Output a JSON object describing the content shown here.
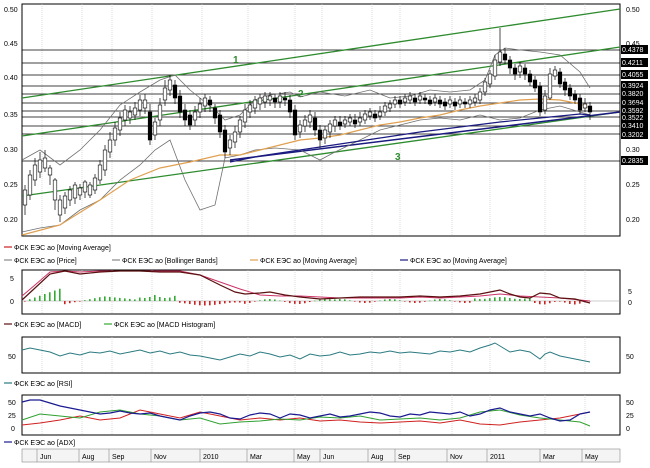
{
  "colors": {
    "price_up": "#ffffff",
    "price_down": "#000000",
    "ma_short": "#e0a050",
    "ma_long": "#1a1a80",
    "bollinger": "#707070",
    "channel": "#2e8b2e",
    "macd_line": "#5a1010",
    "macd_signal": "#cc3366",
    "hist_up": "#33aa33",
    "hist_down": "#cc2222",
    "rsi": "#2a7a80",
    "adx": "#1a1a90",
    "di_plus": "#30a030",
    "di_minus": "#d02020"
  },
  "price_panel": {
    "y_ticks": [
      "0.50",
      "0.45",
      "0.40",
      "0.35",
      "0.30",
      "0.25",
      "0.20"
    ],
    "right_ticks": [
      "0.50",
      "0.45",
      "0.40",
      "0.35",
      "0.30",
      "0.25",
      "0.20"
    ],
    "levels": [
      "0.4378",
      "0.4211",
      "0.4055",
      "0.3924",
      "0.3820",
      "0.3694",
      "0.3592",
      "0.3522",
      "0.3410",
      "0.3202",
      "0.2835"
    ],
    "channel_labels": [
      "1",
      "2",
      "3"
    ],
    "legend": [
      "ФСК ЕЭС ао [Moving Average]",
      "ФСК ЕЭС ао [Price]",
      "ФСК ЕЭС ао [Bollinger Bands]",
      "ФСК ЕЭС ао [Moving Average]",
      "ФСК ЕЭС ао [Moving Average]"
    ]
  },
  "macd_panel": {
    "y_ticks": [
      "5",
      "0",
      "-5"
    ],
    "right_ticks": [
      "5",
      "0"
    ],
    "legend": [
      "ФСК ЕЭС ао [MACD]",
      "ФСК ЕЭС ао [MACD Histogram]"
    ]
  },
  "rsi_panel": {
    "y_ticks": [
      "50"
    ],
    "right_ticks": [
      "50"
    ],
    "legend": [
      "ФСК ЕЭС ао [RSI]"
    ]
  },
  "adx_panel": {
    "y_ticks": [
      "50",
      "25",
      "0"
    ],
    "right_ticks": [
      "50",
      "25",
      "0"
    ],
    "legend": [
      "ФСК ЕЭС ао [ADX]"
    ]
  },
  "x_axis": [
    "Jun",
    "Aug",
    "Sep",
    "Nov",
    "2010",
    "Mar",
    "May",
    "Jun",
    "Aug",
    "Sep",
    "Nov",
    "2011",
    "Mar",
    "May"
  ]
}
